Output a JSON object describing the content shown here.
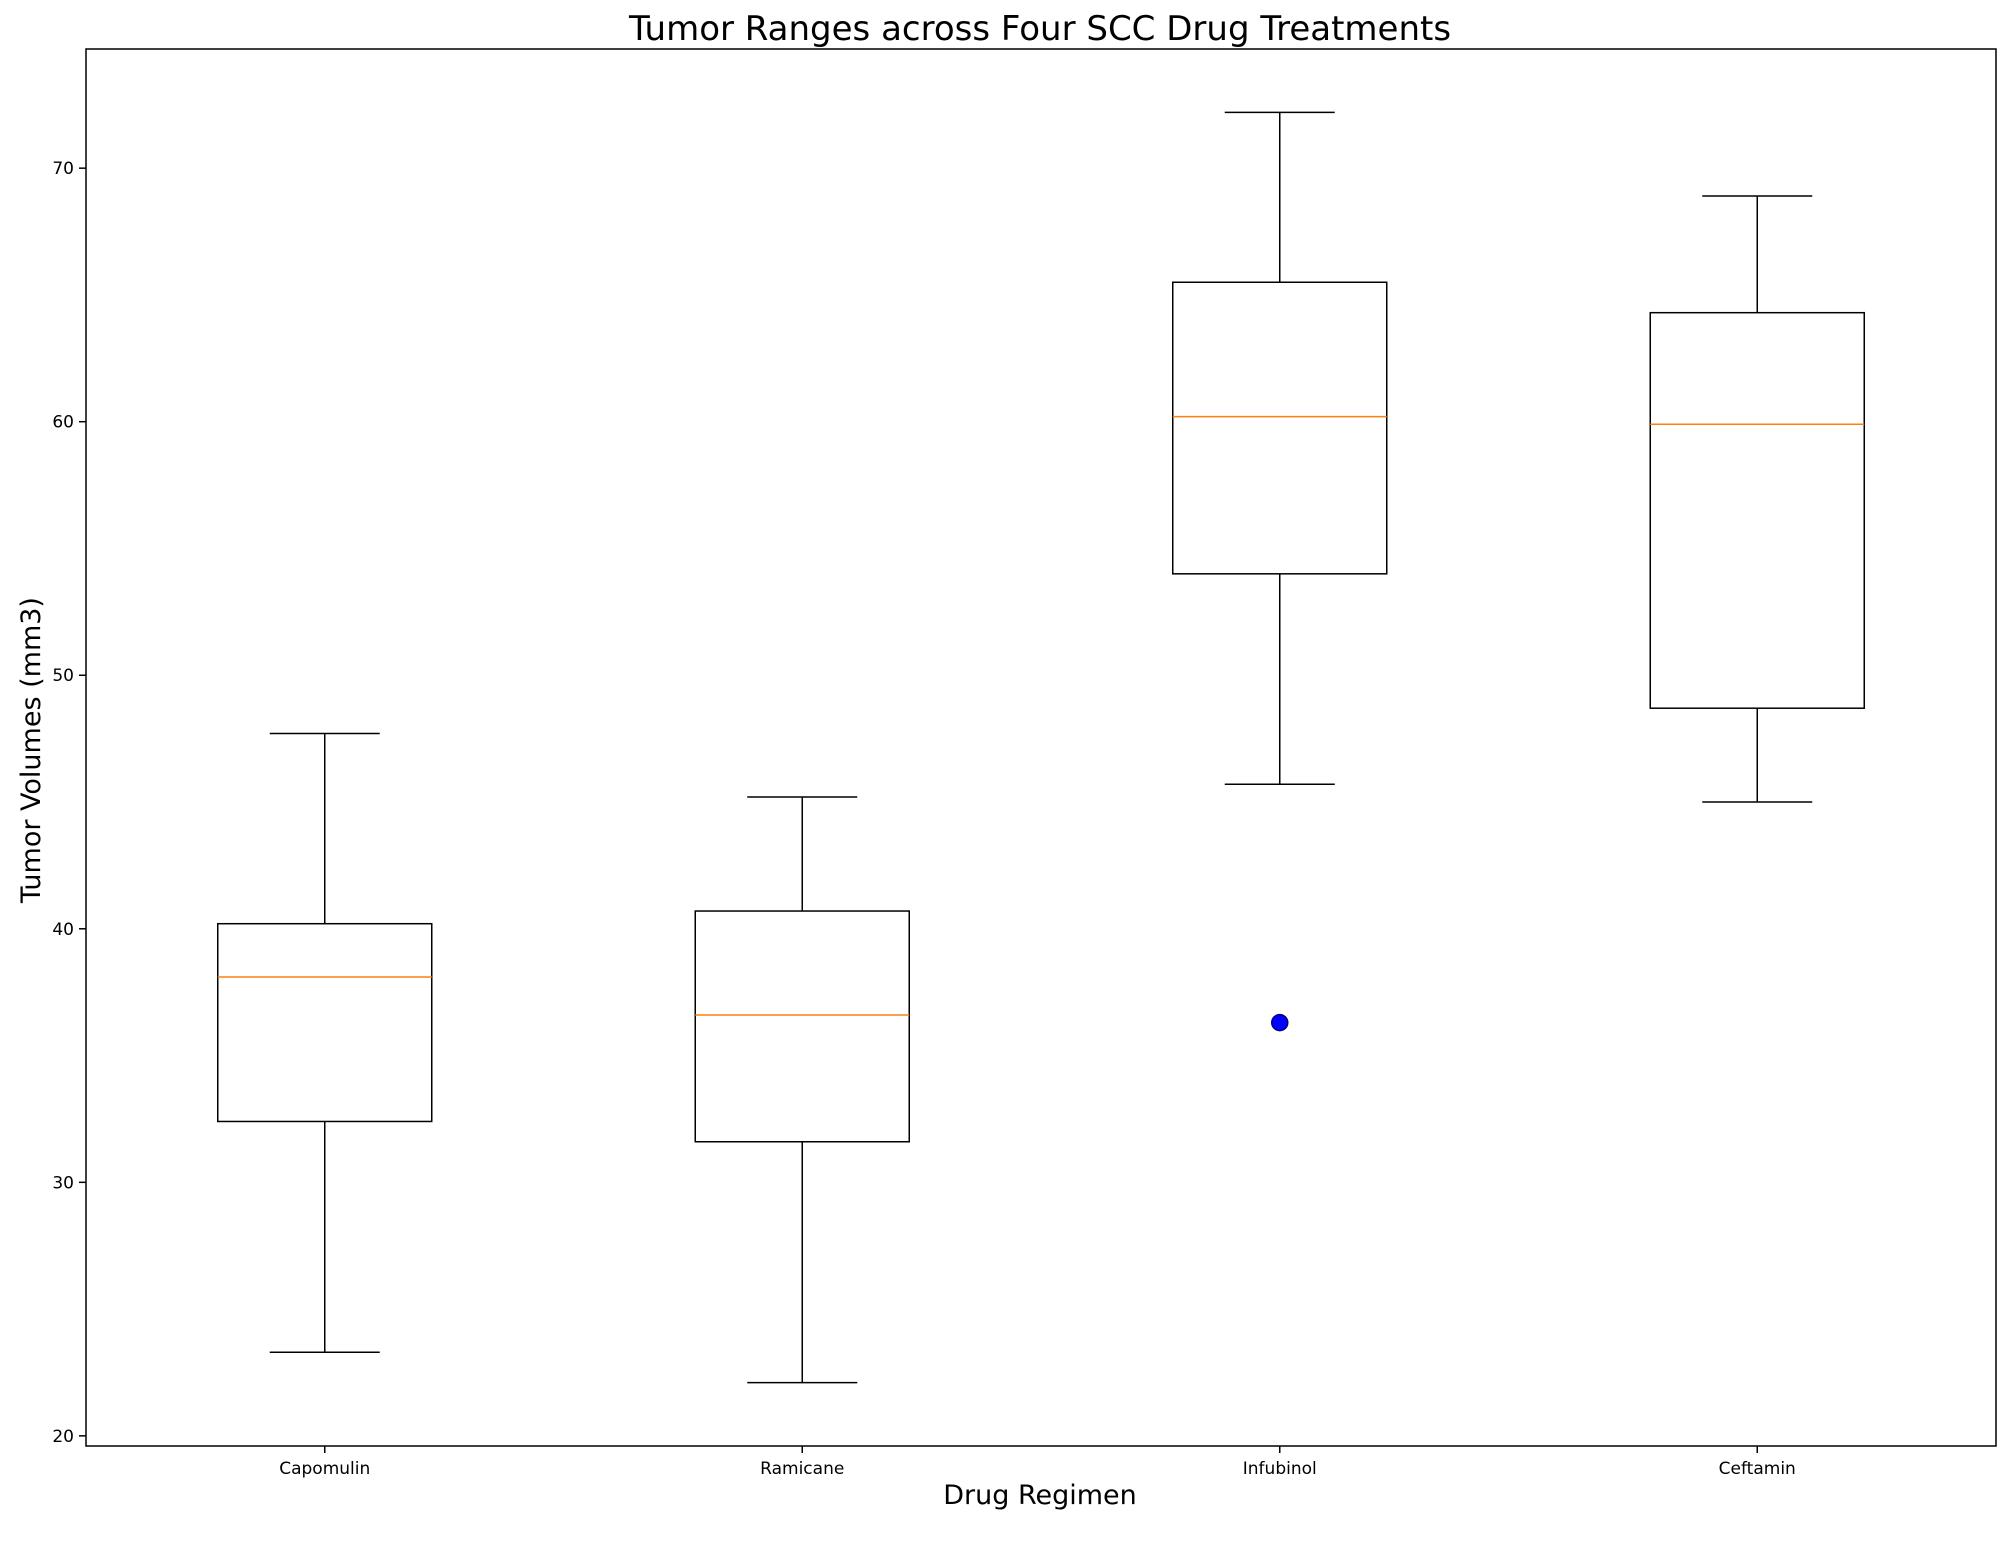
{
  "chart_data": {
    "type": "box",
    "title": "Tumor Ranges across Four SCC Drug Treatments",
    "xlabel": "Drug Regimen",
    "ylabel": "Tumor Volumes (mm3)",
    "ylim": [
      19.6,
      74.7
    ],
    "yticks": [
      20,
      30,
      40,
      50,
      60,
      70
    ],
    "ytick_labels": [
      "20",
      "30",
      "40",
      "50",
      "60",
      "70"
    ],
    "grid": false,
    "categories": [
      "Capomulin",
      "Ramicane",
      "Infubinol",
      "Ceftamin"
    ],
    "boxes": [
      {
        "category": "Capomulin",
        "whisker_low": 23.3,
        "q1": 32.4,
        "median": 38.1,
        "q3": 40.2,
        "whisker_high": 47.7,
        "outliers": []
      },
      {
        "category": "Ramicane",
        "whisker_low": 22.1,
        "q1": 31.6,
        "median": 36.6,
        "q3": 40.7,
        "whisker_high": 45.2,
        "outliers": []
      },
      {
        "category": "Infubinol",
        "whisker_low": 45.7,
        "q1": 54.0,
        "median": 60.2,
        "q3": 65.5,
        "whisker_high": 72.2,
        "outliers": [
          36.3
        ]
      },
      {
        "category": "Ceftamin",
        "whisker_low": 45.0,
        "q1": 48.7,
        "median": 59.9,
        "q3": 64.3,
        "whisker_high": 68.9,
        "outliers": []
      }
    ],
    "colors": {
      "box": "#000000",
      "median": "#ff7f0e",
      "outlier_fill": "#0000ff",
      "outlier_edge": "#000080"
    }
  }
}
